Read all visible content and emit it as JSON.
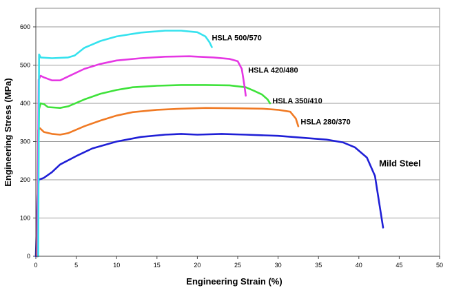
{
  "chart_data": {
    "type": "line",
    "title": "",
    "xlabel": "Engineering Strain (%)",
    "ylabel": "Engineering Stress (MPa)",
    "xlim": [
      0,
      50
    ],
    "ylim": [
      0,
      650
    ],
    "xticks": [
      0,
      5,
      10,
      15,
      20,
      25,
      30,
      35,
      40,
      45,
      50
    ],
    "yticks": [
      0,
      100,
      200,
      300,
      400,
      500,
      600
    ],
    "grid": "horizontal",
    "legend": "inline labels at curve ends",
    "series": [
      {
        "name": "Mild Steel",
        "color": "#1f1fd6",
        "label_at": [
          42.5,
          235
        ],
        "points": [
          [
            0,
            0
          ],
          [
            0.2,
            150
          ],
          [
            0.35,
            200
          ],
          [
            1,
            205
          ],
          [
            2,
            220
          ],
          [
            3,
            240
          ],
          [
            5,
            262
          ],
          [
            7,
            282
          ],
          [
            10,
            300
          ],
          [
            13,
            312
          ],
          [
            16,
            318
          ],
          [
            18,
            320
          ],
          [
            20,
            318
          ],
          [
            23,
            320
          ],
          [
            26,
            318
          ],
          [
            30,
            315
          ],
          [
            33,
            310
          ],
          [
            36,
            305
          ],
          [
            38,
            298
          ],
          [
            39.5,
            285
          ],
          [
            41,
            258
          ],
          [
            42,
            210
          ],
          [
            43,
            75
          ]
        ]
      },
      {
        "name": "HSLA 280/370",
        "color": "#f07a24",
        "label_at": [
          32.8,
          345
        ],
        "points": [
          [
            0.15,
            0
          ],
          [
            0.3,
            330
          ],
          [
            0.5,
            335
          ],
          [
            1,
            325
          ],
          [
            2,
            320
          ],
          [
            3,
            318
          ],
          [
            4,
            322
          ],
          [
            6,
            340
          ],
          [
            8,
            355
          ],
          [
            10,
            368
          ],
          [
            12,
            377
          ],
          [
            15,
            383
          ],
          [
            18,
            386
          ],
          [
            21,
            388
          ],
          [
            25,
            387
          ],
          [
            28,
            386
          ],
          [
            30,
            383
          ],
          [
            31.5,
            378
          ],
          [
            32.2,
            360
          ],
          [
            32.5,
            340
          ]
        ]
      },
      {
        "name": "HSLA 350/410",
        "color": "#3ee23a",
        "label_at": [
          29.3,
          400
        ],
        "points": [
          [
            0.2,
            0
          ],
          [
            0.4,
            385
          ],
          [
            0.6,
            400
          ],
          [
            1,
            398
          ],
          [
            1.5,
            390
          ],
          [
            3,
            388
          ],
          [
            4,
            392
          ],
          [
            6,
            410
          ],
          [
            8,
            425
          ],
          [
            10,
            435
          ],
          [
            12,
            442
          ],
          [
            15,
            446
          ],
          [
            18,
            448
          ],
          [
            21,
            448
          ],
          [
            24,
            447
          ],
          [
            26,
            442
          ],
          [
            27,
            433
          ],
          [
            28,
            423
          ],
          [
            28.7,
            410
          ],
          [
            29,
            400
          ]
        ]
      },
      {
        "name": "HSLA 420/480",
        "color": "#e537e3",
        "label_at": [
          26.3,
          480
        ],
        "points": [
          [
            0.2,
            0
          ],
          [
            0.35,
            462
          ],
          [
            0.6,
            472
          ],
          [
            1,
            468
          ],
          [
            2,
            460
          ],
          [
            3,
            460
          ],
          [
            4,
            470
          ],
          [
            6,
            490
          ],
          [
            8,
            503
          ],
          [
            10,
            512
          ],
          [
            13,
            518
          ],
          [
            16,
            522
          ],
          [
            19,
            523
          ],
          [
            22,
            520
          ],
          [
            24,
            516
          ],
          [
            25,
            510
          ],
          [
            25.5,
            490
          ],
          [
            25.8,
            450
          ],
          [
            26,
            420
          ]
        ]
      },
      {
        "name": "HSLA 500/570",
        "color": "#35e2ee",
        "label_at": [
          21.8,
          565
        ],
        "points": [
          [
            0.3,
            0
          ],
          [
            0.4,
            528
          ],
          [
            0.6,
            520
          ],
          [
            2,
            518
          ],
          [
            4,
            520
          ],
          [
            4.8,
            525
          ],
          [
            6,
            545
          ],
          [
            8,
            563
          ],
          [
            10,
            575
          ],
          [
            13,
            585
          ],
          [
            16,
            590
          ],
          [
            18,
            590
          ],
          [
            20,
            586
          ],
          [
            21,
            575
          ],
          [
            21.5,
            560
          ],
          [
            21.8,
            547
          ]
        ]
      }
    ]
  }
}
